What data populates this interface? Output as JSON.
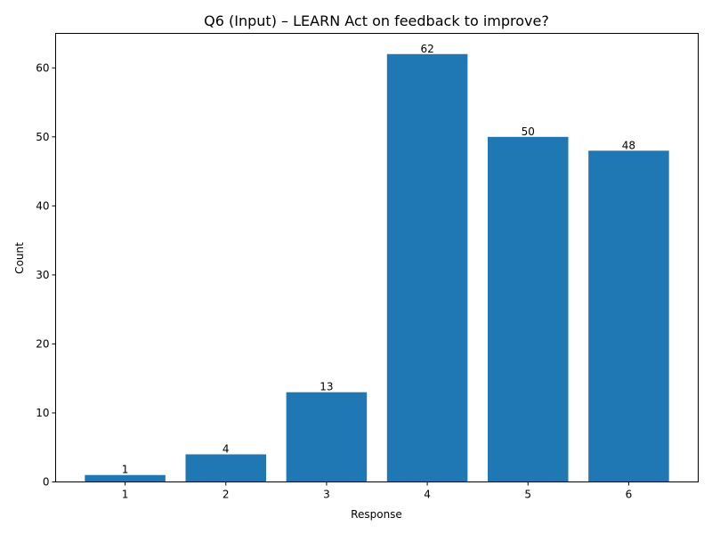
{
  "chart_data": {
    "type": "bar",
    "title": "Q6 (Input) – LEARN Act on feedback to improve?",
    "xlabel": "Response",
    "ylabel": "Count",
    "categories": [
      "1",
      "2",
      "3",
      "4",
      "5",
      "6"
    ],
    "values": [
      1,
      4,
      13,
      62,
      50,
      48
    ],
    "data_labels": [
      "1",
      "4",
      "13",
      "62",
      "50",
      "48"
    ],
    "ylim": [
      0,
      65
    ],
    "yticks": [
      0,
      10,
      20,
      30,
      40,
      50,
      60
    ],
    "ytick_labels": [
      "0",
      "10",
      "20",
      "30",
      "40",
      "50",
      "60"
    ],
    "bar_color": "#1f77b4",
    "grid": false,
    "legend": "none"
  }
}
